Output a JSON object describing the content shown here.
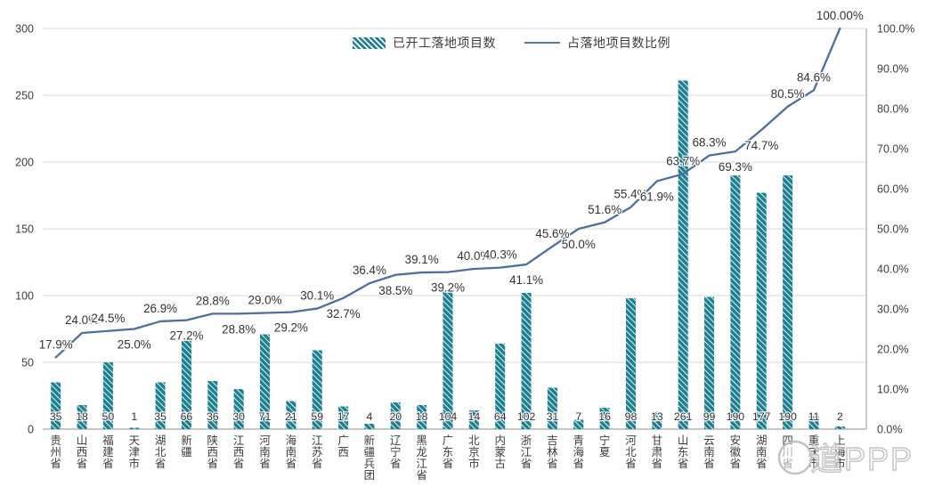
{
  "chart_data": {
    "type": "combo",
    "categories": [
      "贵州省",
      "山西省",
      "福建省",
      "天津市",
      "湖北省",
      "新疆",
      "陕西省",
      "江西省",
      "河南省",
      "海南省",
      "江苏省",
      "广西",
      "新疆兵团",
      "辽宁省",
      "黑龙江省",
      "广东省",
      "北京市",
      "内蒙古",
      "浙江省",
      "吉林省",
      "青海省",
      "宁夏",
      "河北省",
      "甘肃省",
      "山东省",
      "云南省",
      "安徽省",
      "湖南省",
      "四川省",
      "重庆市",
      "上海市"
    ],
    "series": [
      {
        "name": "已开工落地项目数",
        "type": "bar",
        "axis": "left",
        "color": "#1a8092",
        "values": [
          35,
          18,
          50,
          1,
          35,
          66,
          36,
          30,
          71,
          21,
          59,
          17,
          4,
          20,
          18,
          104,
          14,
          64,
          102,
          31,
          7,
          16,
          98,
          13,
          261,
          99,
          190,
          177,
          190,
          11,
          2
        ]
      },
      {
        "name": "占落地项目数比例",
        "type": "line",
        "axis": "right",
        "color": "#4d6f9c",
        "values": [
          17.9,
          24.0,
          24.5,
          25.0,
          26.9,
          27.2,
          28.8,
          28.8,
          29.0,
          29.2,
          30.1,
          32.7,
          36.4,
          38.5,
          39.1,
          39.2,
          40.0,
          40.3,
          41.1,
          45.6,
          50.0,
          51.6,
          55.4,
          61.9,
          63.7,
          68.3,
          69.3,
          74.7,
          80.5,
          84.6,
          100.0
        ],
        "labels": [
          "17.9%",
          "24.0%",
          "24.5%",
          "25.0%",
          "26.9%",
          "27.2%",
          "28.8%",
          "28.8%",
          "29.0%",
          "29.2%",
          "30.1%",
          "32.7%",
          "36.4%",
          "38.5%",
          "39.1%",
          "39.2%",
          "40.0%",
          "40.3%",
          "41.1%",
          "45.6%",
          "50.0%",
          "51.6%",
          "55.4%",
          "61.9%",
          "63.7%",
          "68.3%",
          "69.3%",
          "74.7%",
          "80.5%",
          "84.6%",
          "100.00%"
        ]
      }
    ],
    "left_axis": {
      "min": 0,
      "max": 300,
      "step": 50,
      "ticks": [
        "0",
        "50",
        "100",
        "150",
        "200",
        "250",
        "300"
      ]
    },
    "right_axis": {
      "min": 0,
      "max": 100,
      "step": 10,
      "ticks": [
        "0.0%",
        "10.0%",
        "20.0%",
        "30.0%",
        "40.0%",
        "50.0%",
        "60.0%",
        "70.0%",
        "80.0%",
        "90.0%",
        "100.0%"
      ]
    },
    "grid": true,
    "legend_position": "top-center",
    "title": ""
  },
  "watermark": "道PPP",
  "colors": {
    "bar": "#1a8092",
    "line": "#4d6f9c",
    "grid": "#d9d9d9",
    "axis_line": "#a6a6a6",
    "text": "#3d3d3d",
    "watermark": "#c3c3c3"
  }
}
